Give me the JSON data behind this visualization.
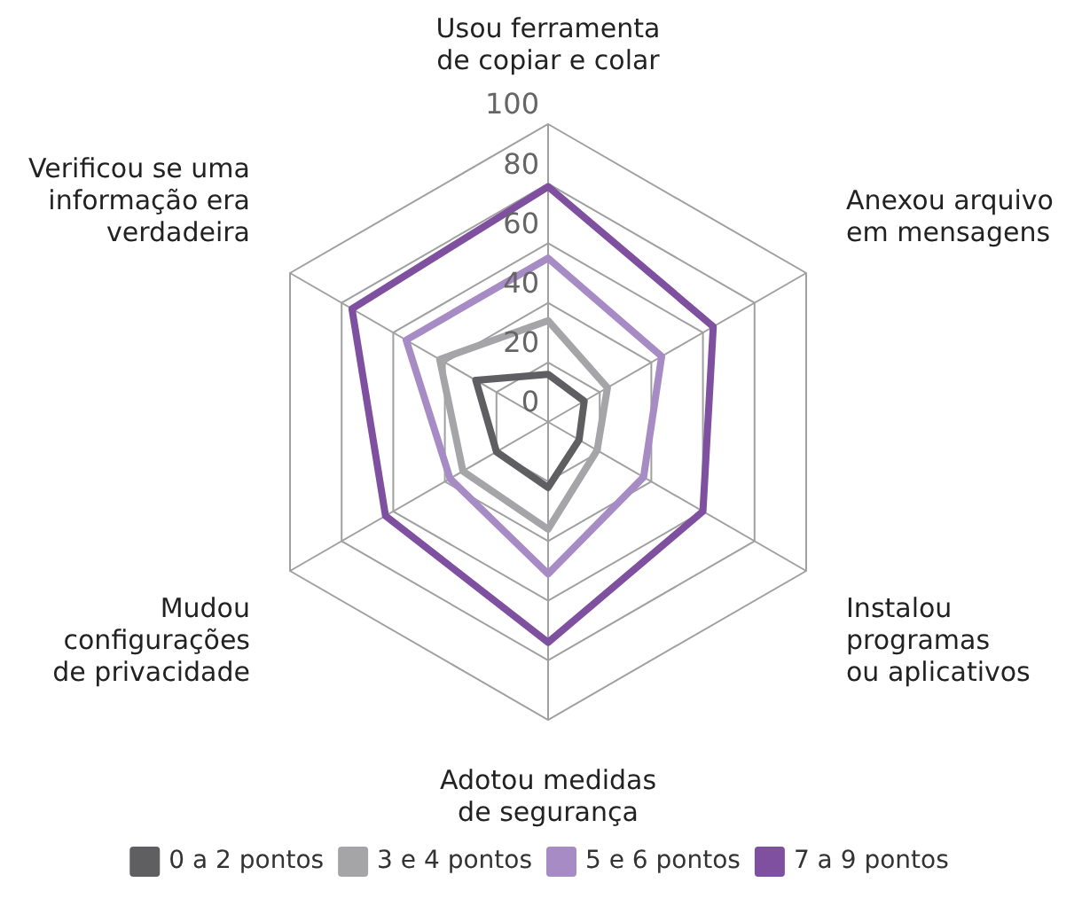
{
  "chart_data": {
    "type": "radar",
    "categories": [
      "Usou ferramenta\nde copiar e colar",
      "Anexou arquivo\nem mensagens",
      "Instalou\nprogramas\nou aplicativos",
      "Adotou medidas\nde segurança",
      "Mudou\nconfigurações\nde privacidade",
      "Verificou se uma\ninformação era\nverdadeira"
    ],
    "series": [
      {
        "name": "0 a 2 pontos",
        "color": "#5f5f61",
        "values": [
          16,
          14,
          12,
          22,
          20,
          28
        ]
      },
      {
        "name": "3 e 4 pontos",
        "color": "#a5a5a8",
        "values": [
          34,
          23,
          19,
          36,
          33,
          42
        ]
      },
      {
        "name": "5 e 6 pontos",
        "color": "#a68bc4",
        "values": [
          55,
          44,
          37,
          51,
          38,
          55
        ]
      },
      {
        "name": "7 a 9 pontos",
        "color": "#7f4fa0",
        "values": [
          79,
          64,
          60,
          74,
          63,
          76
        ]
      }
    ],
    "ylim": [
      0,
      100
    ],
    "yticks": [
      0,
      20,
      40,
      60,
      80,
      100
    ],
    "grid": true,
    "legend": "bottom",
    "marker": "none"
  }
}
